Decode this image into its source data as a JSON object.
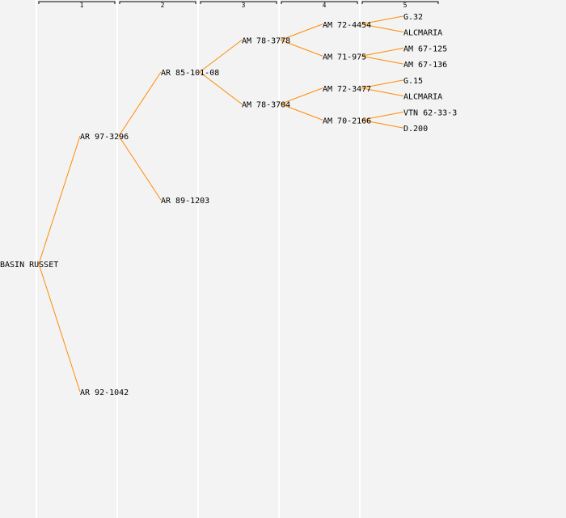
{
  "generations": [
    "1",
    "2",
    "3",
    "4",
    "5"
  ],
  "colors": {
    "line": "#ff8c00",
    "background": "#f3f3f3",
    "grid": "#ffffff"
  },
  "tree": {
    "name": "BASIN RUSSET",
    "children": [
      {
        "name": "AR 97-3296",
        "children": [
          {
            "name": "AR 85-101-08",
            "children": [
              {
                "name": "AM 78-3778",
                "children": [
                  {
                    "name": "AM 72-4454",
                    "children": [
                      {
                        "name": "G.32"
                      },
                      {
                        "name": "ALCMARIA"
                      }
                    ]
                  },
                  {
                    "name": "AM 71-975",
                    "children": [
                      {
                        "name": "AM 67-125"
                      },
                      {
                        "name": "AM 67-136"
                      }
                    ]
                  }
                ]
              },
              {
                "name": "AM 78-3704",
                "children": [
                  {
                    "name": "AM 72-3477",
                    "children": [
                      {
                        "name": "G.15"
                      },
                      {
                        "name": "ALCMARIA"
                      }
                    ]
                  },
                  {
                    "name": "AM 70-2166",
                    "children": [
                      {
                        "name": "VTN 62-33-3"
                      },
                      {
                        "name": "D.200"
                      }
                    ]
                  }
                ]
              }
            ]
          },
          {
            "name": "AR 89-1203"
          }
        ]
      },
      {
        "name": "AR 92-1042"
      }
    ]
  }
}
